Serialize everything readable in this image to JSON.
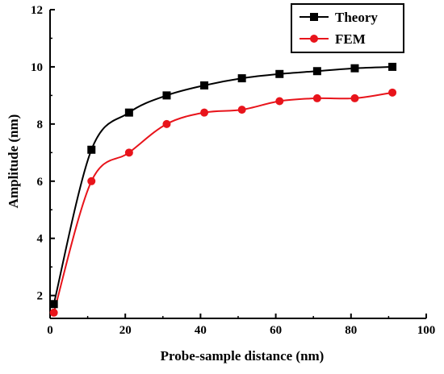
{
  "chart_data": {
    "type": "line",
    "xlabel": "Probe-sample distance  (nm)",
    "ylabel": "Amplitude (nm)",
    "xlim": [
      0,
      100
    ],
    "ylim": [
      1.2,
      12
    ],
    "x_ticks": [
      0,
      20,
      40,
      60,
      80,
      100
    ],
    "y_ticks": [
      2,
      4,
      6,
      8,
      10,
      12
    ],
    "grid": false,
    "legend_position": "top-right",
    "series": [
      {
        "name": "Theory",
        "color": "#000000",
        "marker": "square",
        "x": [
          1,
          11,
          21,
          31,
          41,
          51,
          61,
          71,
          81,
          91
        ],
        "y": [
          1.7,
          7.1,
          8.4,
          9.0,
          9.35,
          9.6,
          9.75,
          9.85,
          9.95,
          10.0
        ]
      },
      {
        "name": "FEM",
        "color": "#e8141b",
        "marker": "circle",
        "x": [
          1,
          11,
          21,
          31,
          41,
          51,
          61,
          71,
          81,
          91
        ],
        "y": [
          1.4,
          6.0,
          7.0,
          8.0,
          8.4,
          8.5,
          8.8,
          8.9,
          8.9,
          9.1
        ]
      }
    ]
  }
}
